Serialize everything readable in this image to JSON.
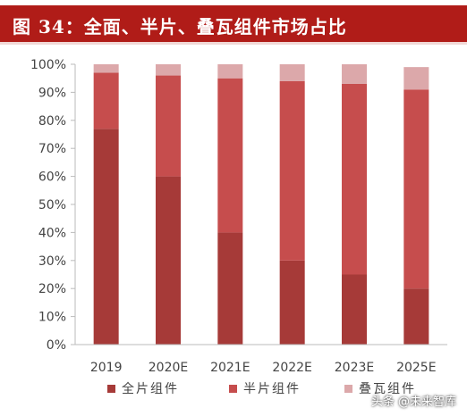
{
  "header": {
    "title": "图 34：全面、半片、叠瓦组件市场占比"
  },
  "watermark": "头条 @未来智库",
  "colors": {
    "title_bg": "#b01c18",
    "full_cell": "#a63a38",
    "half_cell": "#c64d4d",
    "shingled": "#dca8aa",
    "axis": "#bbbbbb",
    "text": "#444444"
  },
  "chart_data": {
    "type": "bar",
    "stacked": true,
    "categories": [
      "2019",
      "2020E",
      "2021E",
      "2022E",
      "2023E",
      "2025E"
    ],
    "series": [
      {
        "name": "全片组件",
        "values": [
          77,
          60,
          40,
          30,
          25,
          20
        ]
      },
      {
        "name": "半片组件",
        "values": [
          20,
          36,
          55,
          64,
          68,
          71
        ]
      },
      {
        "name": "叠瓦组件",
        "values": [
          3,
          4,
          5,
          6,
          7,
          8
        ]
      }
    ],
    "ylim": [
      0,
      100
    ],
    "yticks": [
      "0%",
      "10%",
      "20%",
      "30%",
      "40%",
      "50%",
      "60%",
      "70%",
      "80%",
      "90%",
      "100%"
    ],
    "legend_position": "bottom",
    "grid": false
  }
}
